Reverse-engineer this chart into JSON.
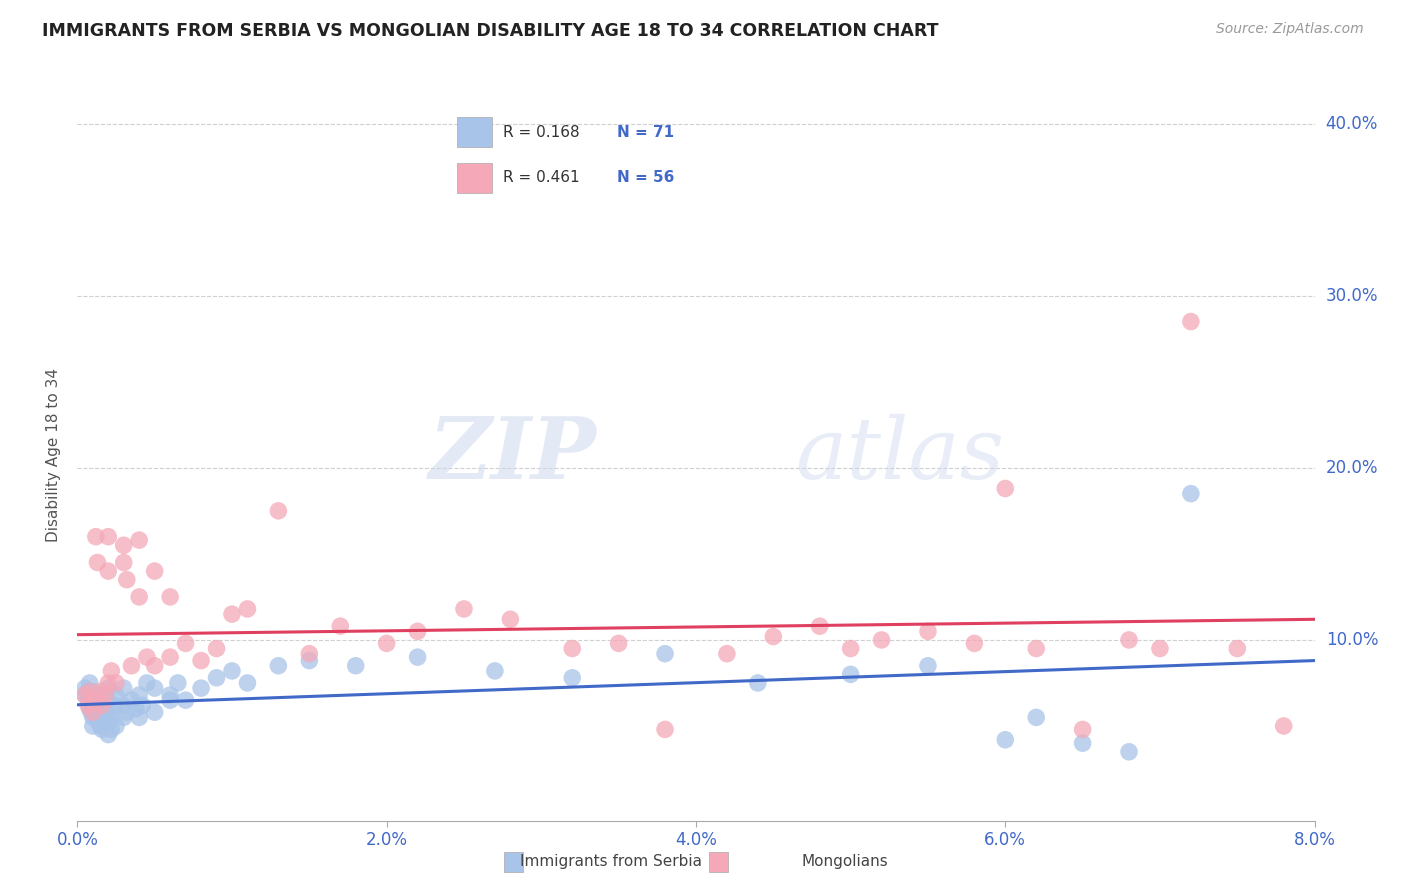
{
  "title": "IMMIGRANTS FROM SERBIA VS MONGOLIAN DISABILITY AGE 18 TO 34 CORRELATION CHART",
  "source": "Source: ZipAtlas.com",
  "ylabel_label": "Disability Age 18 to 34",
  "xlim": [
    0.0,
    0.08
  ],
  "ylim": [
    -0.005,
    0.42
  ],
  "ytick_vals": [
    0.1,
    0.2,
    0.3,
    0.4
  ],
  "xtick_vals": [
    0.0,
    0.02,
    0.04,
    0.06,
    0.08
  ],
  "legend_r1": "0.168",
  "legend_n1": "71",
  "legend_r2": "0.461",
  "legend_n2": "56",
  "color_serbia": "#a8c4e8",
  "color_mongolia": "#f4a8b8",
  "color_line_serbia": "#4169c8",
  "color_line_mongolia": "#e04060",
  "watermark_zip": "ZIP",
  "watermark_atlas": "atlas",
  "serbia_x": [
    0.0005,
    0.0005,
    0.0007,
    0.0007,
    0.0008,
    0.0008,
    0.0009,
    0.0009,
    0.001,
    0.001,
    0.001,
    0.001,
    0.001,
    0.0012,
    0.0012,
    0.0013,
    0.0013,
    0.0014,
    0.0014,
    0.0015,
    0.0015,
    0.0016,
    0.0016,
    0.0017,
    0.0018,
    0.0018,
    0.002,
    0.002,
    0.002,
    0.002,
    0.002,
    0.0022,
    0.0022,
    0.0024,
    0.0025,
    0.0025,
    0.003,
    0.003,
    0.003,
    0.0032,
    0.0035,
    0.0038,
    0.004,
    0.004,
    0.0042,
    0.0045,
    0.005,
    0.005,
    0.006,
    0.006,
    0.0065,
    0.007,
    0.008,
    0.009,
    0.01,
    0.011,
    0.013,
    0.015,
    0.018,
    0.022,
    0.027,
    0.032,
    0.038,
    0.044,
    0.05,
    0.055,
    0.06,
    0.062,
    0.065,
    0.068,
    0.072
  ],
  "serbia_y": [
    0.068,
    0.072,
    0.065,
    0.07,
    0.06,
    0.075,
    0.058,
    0.065,
    0.05,
    0.055,
    0.06,
    0.065,
    0.07,
    0.058,
    0.062,
    0.055,
    0.068,
    0.052,
    0.06,
    0.05,
    0.058,
    0.048,
    0.055,
    0.062,
    0.05,
    0.058,
    0.045,
    0.052,
    0.058,
    0.065,
    0.072,
    0.048,
    0.055,
    0.062,
    0.05,
    0.068,
    0.055,
    0.062,
    0.072,
    0.058,
    0.065,
    0.06,
    0.055,
    0.068,
    0.062,
    0.075,
    0.058,
    0.072,
    0.065,
    0.068,
    0.075,
    0.065,
    0.072,
    0.078,
    0.082,
    0.075,
    0.085,
    0.088,
    0.085,
    0.09,
    0.082,
    0.078,
    0.092,
    0.075,
    0.08,
    0.085,
    0.042,
    0.055,
    0.04,
    0.035,
    0.185
  ],
  "mongolia_x": [
    0.0005,
    0.0007,
    0.0008,
    0.001,
    0.001,
    0.0012,
    0.0013,
    0.0015,
    0.0016,
    0.0018,
    0.002,
    0.002,
    0.002,
    0.0022,
    0.0025,
    0.003,
    0.003,
    0.0032,
    0.0035,
    0.004,
    0.004,
    0.0045,
    0.005,
    0.005,
    0.006,
    0.006,
    0.007,
    0.008,
    0.009,
    0.01,
    0.011,
    0.013,
    0.015,
    0.017,
    0.02,
    0.022,
    0.025,
    0.028,
    0.032,
    0.035,
    0.038,
    0.042,
    0.045,
    0.048,
    0.05,
    0.052,
    0.055,
    0.058,
    0.06,
    0.062,
    0.065,
    0.068,
    0.07,
    0.072,
    0.075,
    0.078
  ],
  "mongolia_y": [
    0.068,
    0.062,
    0.07,
    0.058,
    0.065,
    0.16,
    0.145,
    0.07,
    0.062,
    0.068,
    0.075,
    0.16,
    0.14,
    0.082,
    0.075,
    0.155,
    0.145,
    0.135,
    0.085,
    0.158,
    0.125,
    0.09,
    0.085,
    0.14,
    0.125,
    0.09,
    0.098,
    0.088,
    0.095,
    0.115,
    0.118,
    0.175,
    0.092,
    0.108,
    0.098,
    0.105,
    0.118,
    0.112,
    0.095,
    0.098,
    0.048,
    0.092,
    0.102,
    0.108,
    0.095,
    0.1,
    0.105,
    0.098,
    0.188,
    0.095,
    0.048,
    0.1,
    0.095,
    0.285,
    0.095,
    0.05
  ]
}
